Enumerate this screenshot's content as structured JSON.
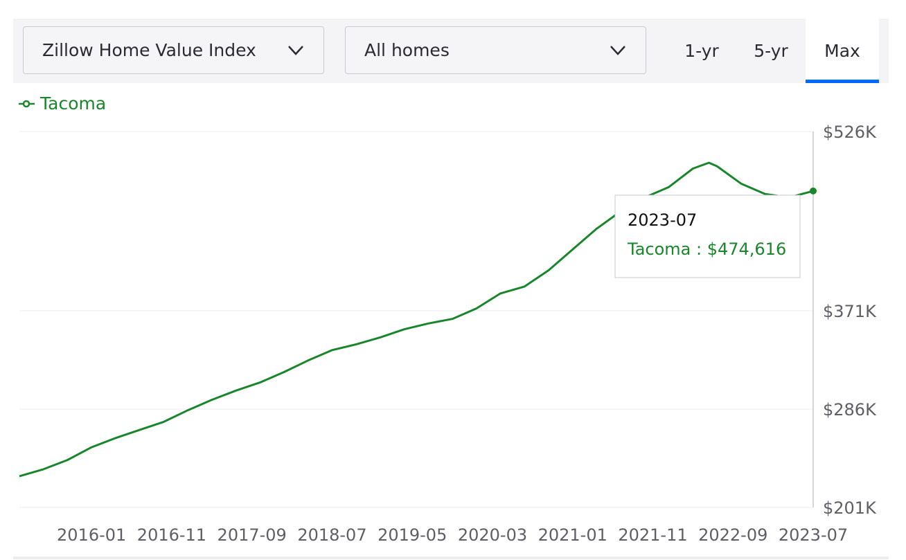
{
  "controls": {
    "metric": "Zillow Home Value Index",
    "home_type": "All homes",
    "ranges": [
      "1-yr",
      "5-yr",
      "Max"
    ],
    "active_range": 2
  },
  "chart_data": {
    "type": "line",
    "x": [
      "2015-04",
      "2015-07",
      "2015-10",
      "2016-01",
      "2016-04",
      "2016-07",
      "2016-10",
      "2017-01",
      "2017-04",
      "2017-07",
      "2017-10",
      "2018-01",
      "2018-04",
      "2018-07",
      "2018-10",
      "2019-01",
      "2019-04",
      "2019-07",
      "2019-10",
      "2020-01",
      "2020-04",
      "2020-07",
      "2020-10",
      "2021-01",
      "2021-04",
      "2021-07",
      "2021-10",
      "2022-01",
      "2022-04",
      "2022-06",
      "2022-07",
      "2022-10",
      "2023-01",
      "2023-04",
      "2023-07"
    ],
    "series": [
      {
        "name": "Tacoma",
        "color": "#1a862b",
        "values": [
          228000,
          234000,
          242000,
          253000,
          261000,
          268000,
          275000,
          285000,
          294000,
          302000,
          309000,
          318000,
          328000,
          337000,
          342000,
          348000,
          355000,
          360000,
          364000,
          373000,
          386000,
          392000,
          406000,
          424000,
          442000,
          457000,
          469000,
          478000,
          494000,
          499000,
          496000,
          481000,
          472000,
          469000,
          474616
        ]
      }
    ],
    "xticks": [
      "2016-01",
      "2016-11",
      "2017-09",
      "2018-07",
      "2019-05",
      "2020-03",
      "2021-01",
      "2021-11",
      "2022-09",
      "2023-07"
    ],
    "ylim": [
      201000,
      526000
    ],
    "yticks": [
      {
        "value": 201000,
        "label": "$201K"
      },
      {
        "value": 286000,
        "label": "$286K"
      },
      {
        "value": 371000,
        "label": "$371K"
      },
      {
        "value": 526000,
        "label": "$526K"
      }
    ],
    "grid": true,
    "legend": "top-left",
    "tooltip": {
      "title": "2023-07",
      "text": "Tacoma : $474,616"
    }
  }
}
